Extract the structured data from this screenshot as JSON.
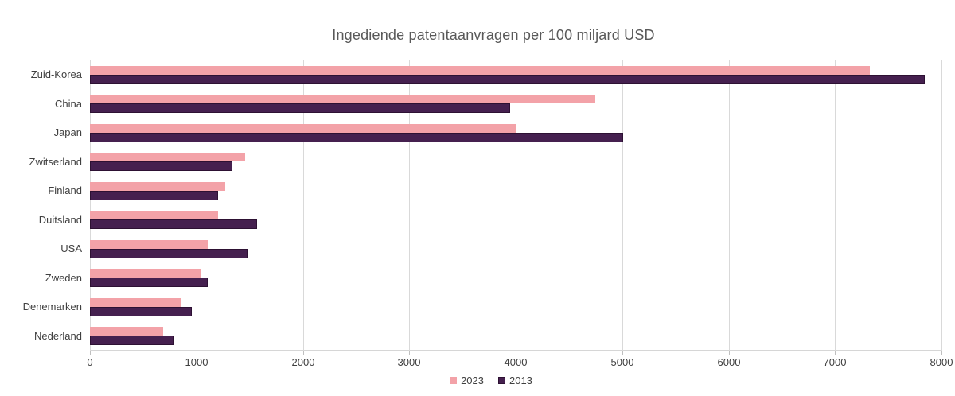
{
  "chart_data": {
    "type": "bar",
    "orientation": "horizontal",
    "title": "Ingediende patentaanvragen per 100 miljard USD",
    "categories": [
      "Zuid-Korea",
      "China",
      "Japan",
      "Zwitserland",
      "Finland",
      "Duitsland",
      "USA",
      "Zweden",
      "Denemarken",
      "Nederland"
    ],
    "series": [
      {
        "name": "2023",
        "color": "#f3a2a8",
        "values": [
          7330,
          4750,
          4000,
          1460,
          1270,
          1200,
          1110,
          1050,
          850,
          690
        ]
      },
      {
        "name": "2013",
        "color": "#45204f",
        "border_color": "#2d1133",
        "values": [
          7840,
          3950,
          5010,
          1340,
          1200,
          1570,
          1480,
          1110,
          960,
          790
        ]
      }
    ],
    "xlim": [
      0,
      8000
    ],
    "x_ticks": [
      0,
      1000,
      2000,
      3000,
      4000,
      5000,
      6000,
      7000,
      8000
    ],
    "grid": "vertical",
    "legend_position": "bottom-center",
    "colors": {
      "gridline": "#d9d9d9",
      "title_text": "#595959",
      "axis_text": "#404040",
      "background": "#ffffff"
    }
  }
}
